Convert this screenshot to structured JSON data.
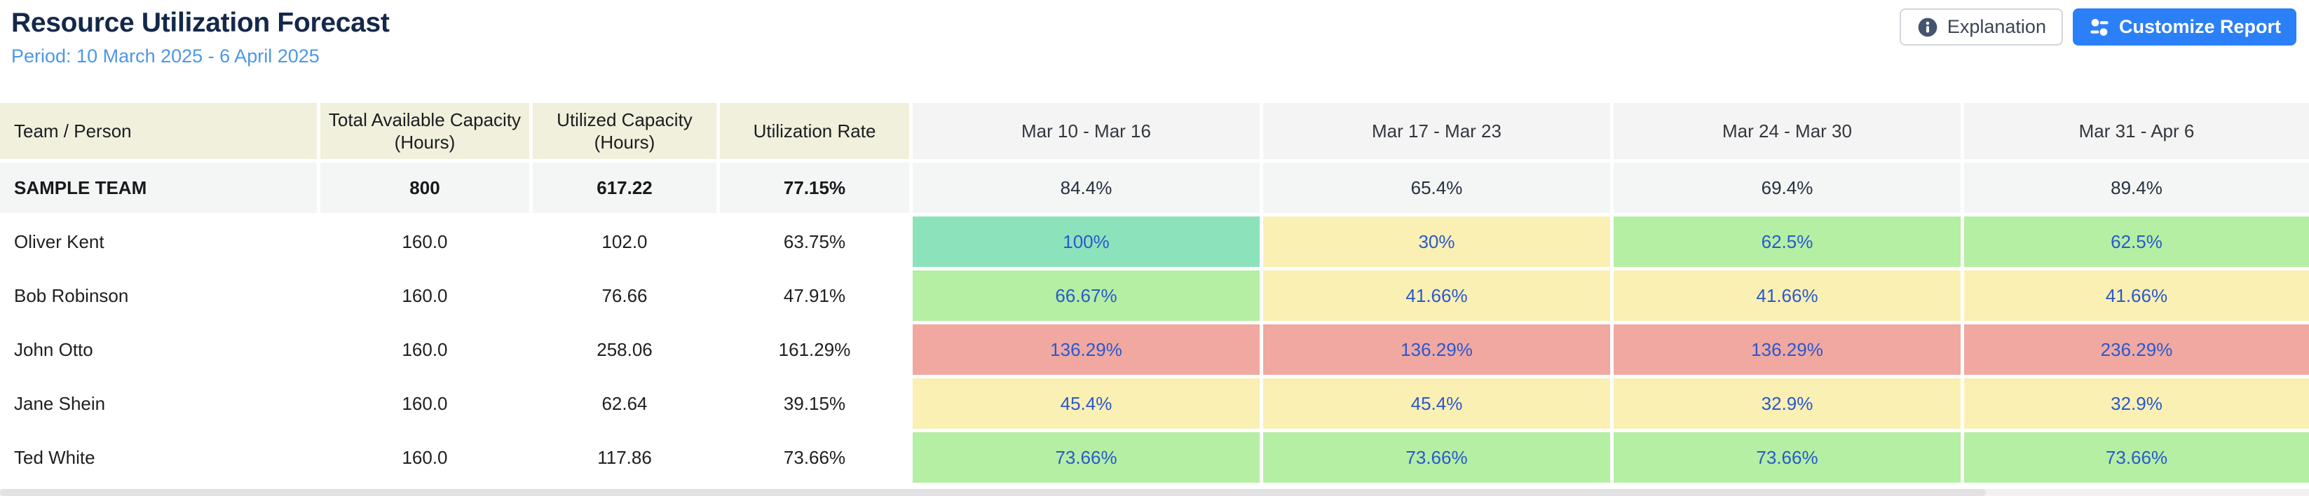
{
  "header": {
    "title": "Resource Utilization Forecast",
    "period": "Period: 10 March 2025 - 6 April 2025",
    "buttons": {
      "explanation": {
        "label": "Explanation",
        "icon": "info-icon"
      },
      "customize": {
        "label": "Customize Report",
        "icon": "sliders-icon"
      }
    }
  },
  "colors": {
    "title_text": "#14284a",
    "subtitle_text": "#4d97e9",
    "primary_button": "#2b80f7",
    "header_cell_bg": "#f0f0dc",
    "week_header_bg": "#f4f4f4",
    "team_row_bg": "#f4f5f5",
    "status_green": "#b4efa3",
    "status_teal": "#8ce3bb",
    "status_yellow": "#faf0b4",
    "status_red": "#f0a8a1",
    "link_text": "#2a58ce"
  },
  "table": {
    "columns": [
      "Team / Person",
      "Total Available Capacity (Hours)",
      "Utilized Capacity (Hours)",
      "Utilization Rate",
      "Mar 10 - Mar 16",
      "Mar 17 - Mar 23",
      "Mar 24 - Mar 30",
      "Mar 31 - Apr 6"
    ],
    "rows": [
      {
        "name": "SAMPLE TEAM",
        "is_team": true,
        "capacity": "800",
        "utilized": "617.22",
        "rate": "77.15%",
        "weeks": [
          {
            "value": "84.4%",
            "status": "green"
          },
          {
            "value": "65.4%",
            "status": "green"
          },
          {
            "value": "69.4%",
            "status": "green"
          },
          {
            "value": "89.4%",
            "status": "teal"
          }
        ]
      },
      {
        "name": "Oliver Kent",
        "is_team": false,
        "capacity": "160.0",
        "utilized": "102.0",
        "rate": "63.75%",
        "weeks": [
          {
            "value": "100%",
            "status": "teal"
          },
          {
            "value": "30%",
            "status": "yellow"
          },
          {
            "value": "62.5%",
            "status": "green"
          },
          {
            "value": "62.5%",
            "status": "green"
          }
        ]
      },
      {
        "name": "Bob Robinson",
        "is_team": false,
        "capacity": "160.0",
        "utilized": "76.66",
        "rate": "47.91%",
        "weeks": [
          {
            "value": "66.67%",
            "status": "green"
          },
          {
            "value": "41.66%",
            "status": "yellow"
          },
          {
            "value": "41.66%",
            "status": "yellow"
          },
          {
            "value": "41.66%",
            "status": "yellow"
          }
        ]
      },
      {
        "name": "John Otto",
        "is_team": false,
        "capacity": "160.0",
        "utilized": "258.06",
        "rate": "161.29%",
        "weeks": [
          {
            "value": "136.29%",
            "status": "red"
          },
          {
            "value": "136.29%",
            "status": "red"
          },
          {
            "value": "136.29%",
            "status": "red"
          },
          {
            "value": "236.29%",
            "status": "red"
          }
        ]
      },
      {
        "name": "Jane Shein",
        "is_team": false,
        "capacity": "160.0",
        "utilized": "62.64",
        "rate": "39.15%",
        "weeks": [
          {
            "value": "45.4%",
            "status": "yellow"
          },
          {
            "value": "45.4%",
            "status": "yellow"
          },
          {
            "value": "32.9%",
            "status": "yellow"
          },
          {
            "value": "32.9%",
            "status": "yellow"
          }
        ]
      },
      {
        "name": "Ted White",
        "is_team": false,
        "capacity": "160.0",
        "utilized": "117.86",
        "rate": "73.66%",
        "weeks": [
          {
            "value": "73.66%",
            "status": "green"
          },
          {
            "value": "73.66%",
            "status": "green"
          },
          {
            "value": "73.66%",
            "status": "green"
          },
          {
            "value": "73.66%",
            "status": "green"
          }
        ]
      }
    ]
  }
}
